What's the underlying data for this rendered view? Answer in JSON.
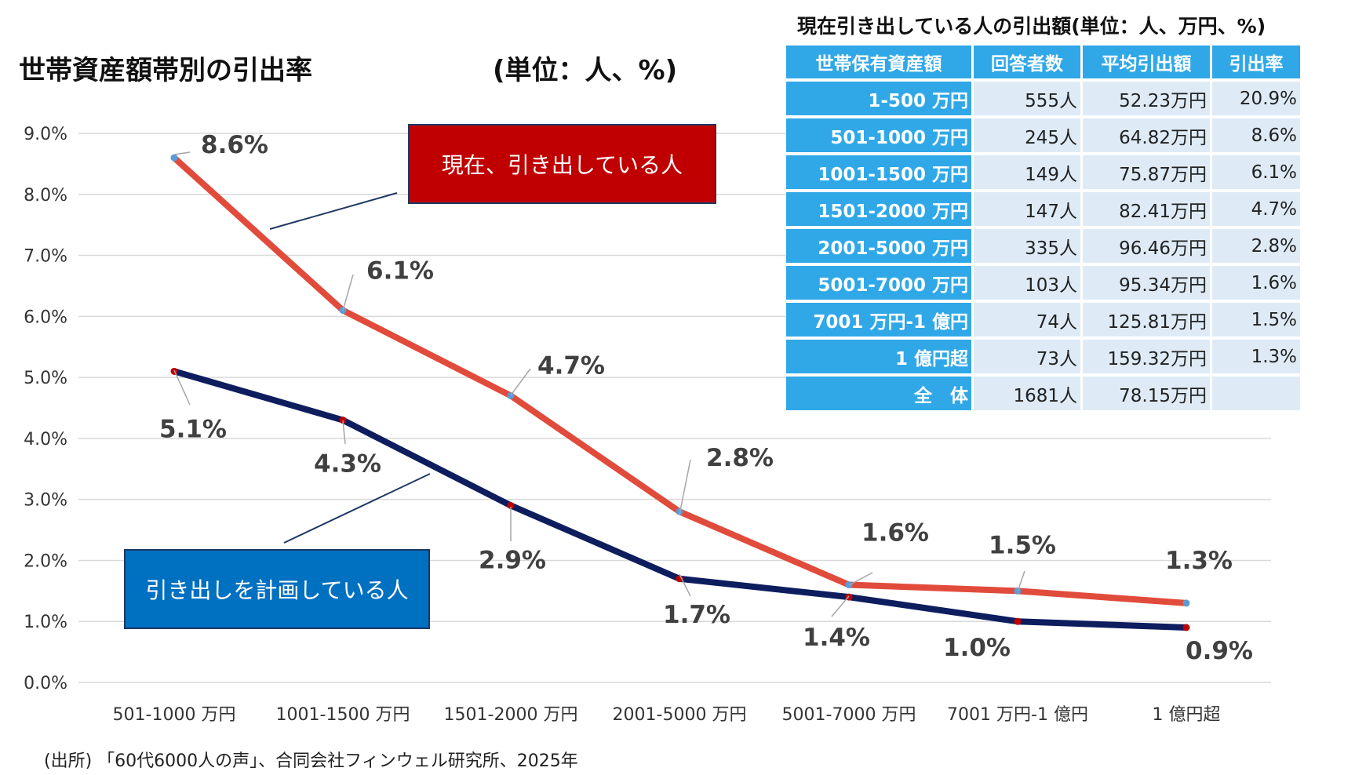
{
  "title": "世帯資産額帯別の引出率",
  "unit_label": "(単位：人、%)",
  "callouts": {
    "current": "現在、引き出している人",
    "planned": "引き出しを計画している人"
  },
  "chart_data": {
    "type": "line",
    "categories": [
      "501-1000 万円",
      "1001-1500 万円",
      "1501-2000 万円",
      "2001-5000 万円",
      "5001-7000 万円",
      "7001 万円-1 億円",
      "1 億円超"
    ],
    "series": [
      {
        "name": "現在、引き出している人",
        "color": "#e14b3b",
        "values": [
          8.6,
          6.1,
          4.7,
          2.8,
          1.6,
          1.5,
          1.3
        ],
        "labels": [
          "8.6%",
          "6.1%",
          "4.7%",
          "2.8%",
          "1.6%",
          "1.5%",
          "1.3%"
        ]
      },
      {
        "name": "引き出しを計画している人",
        "color": "#0d1d5e",
        "values": [
          5.1,
          4.3,
          2.9,
          1.7,
          1.4,
          1.0,
          0.9
        ],
        "labels": [
          "5.1%",
          "4.3%",
          "2.9%",
          "1.7%",
          "1.4%",
          "1.0%",
          "0.9%"
        ]
      }
    ],
    "y_ticks": [
      "0.0%",
      "1.0%",
      "2.0%",
      "3.0%",
      "4.0%",
      "5.0%",
      "6.0%",
      "7.0%",
      "8.0%",
      "9.0%"
    ],
    "ylim": [
      0,
      9
    ],
    "grid": true
  },
  "table": {
    "title": "現在引き出している人の引出額(単位：人、万円、%)",
    "headers": [
      "世帯保有資産額",
      "回答者数",
      "平均引出額",
      "引出率"
    ],
    "rows": [
      [
        "1-500 万円",
        "555人",
        "52.23万円",
        "20.9%"
      ],
      [
        "501-1000 万円",
        "245人",
        "64.82万円",
        "8.6%"
      ],
      [
        "1001-1500 万円",
        "149人",
        "75.87万円",
        "6.1%"
      ],
      [
        "1501-2000 万円",
        "147人",
        "82.41万円",
        "4.7%"
      ],
      [
        "2001-5000 万円",
        "335人",
        "96.46万円",
        "2.8%"
      ],
      [
        "5001-7000 万円",
        "103人",
        "95.34万円",
        "1.6%"
      ],
      [
        "7001 万円-1 億円",
        "74人",
        "125.81万円",
        "1.5%"
      ],
      [
        "1 億円超",
        "73人",
        "159.32万円",
        "1.3%"
      ],
      [
        "全　体",
        "1681人",
        "78.15万円",
        ""
      ]
    ]
  },
  "source": "(出所) 「60代6000人の声」、合同会社フィンウェル研究所、2025年"
}
